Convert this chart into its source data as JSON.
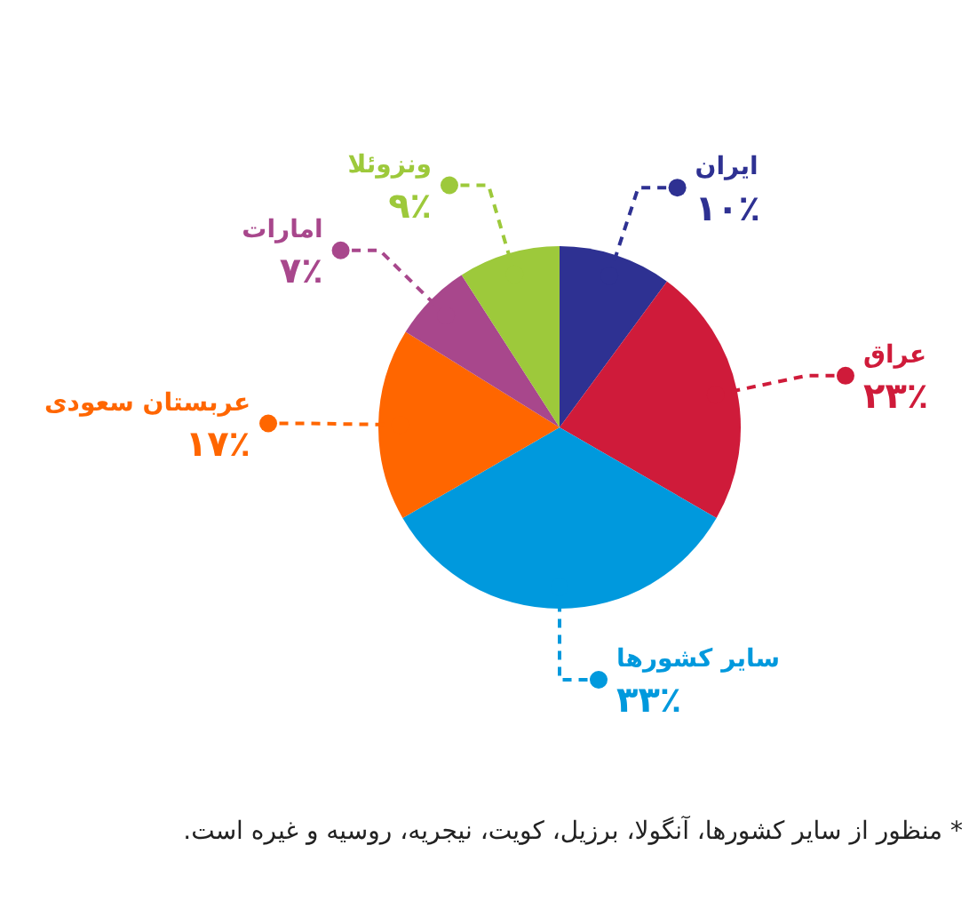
{
  "chart_data": {
    "type": "pie",
    "categories": [
      "ایران",
      "عراق",
      "سایر کشورها",
      "عربستان سعودی",
      "امارات",
      "ونزوئلا"
    ],
    "values": [
      10,
      23,
      33,
      17,
      7,
      9
    ],
    "value_labels": [
      "۱۰٪",
      "۲۳٪",
      "۳۳٪",
      "۱۷٪",
      "۷٪",
      "۹٪"
    ],
    "colors": [
      "#2e3192",
      "#cf1b3a",
      "#0099dd",
      "#ff6600",
      "#a8478c",
      "#9dc93b"
    ],
    "legend": false,
    "annotations": [
      "* منظور از سایر کشورها، آنگولا، برزیل، کویت، نیجریه، روسیه و غیره است."
    ]
  }
}
